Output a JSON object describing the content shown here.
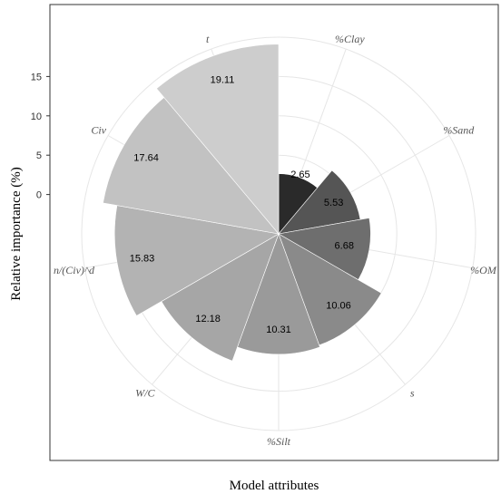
{
  "chart_data": {
    "type": "bar",
    "polar": true,
    "categories": [
      "%Clay",
      "%Sand",
      "%OM",
      "s",
      "%Silt",
      "W/C",
      "n/(Civ)^d",
      "Civ",
      "t"
    ],
    "values": [
      2.65,
      5.53,
      6.68,
      10.06,
      10.31,
      12.18,
      15.83,
      17.64,
      19.11
    ],
    "value_labels": [
      "2.65",
      "5.53",
      "6.68",
      "10.06",
      "10.31",
      "12.18",
      "15.83",
      "17.64",
      "19.11"
    ],
    "colors": [
      "#2a2a2a",
      "#555555",
      "#6e6e6e",
      "#8a8a8a",
      "#9a9a9a",
      "#a6a6a6",
      "#b3b3b3",
      "#c2c2c2",
      "#cdcdcd"
    ],
    "xlabel": "Model attributes",
    "ylabel": "Relative importance (%)",
    "ylim": [
      -5,
      20
    ],
    "yticks": [
      0,
      5,
      10,
      15
    ],
    "grid": true
  }
}
